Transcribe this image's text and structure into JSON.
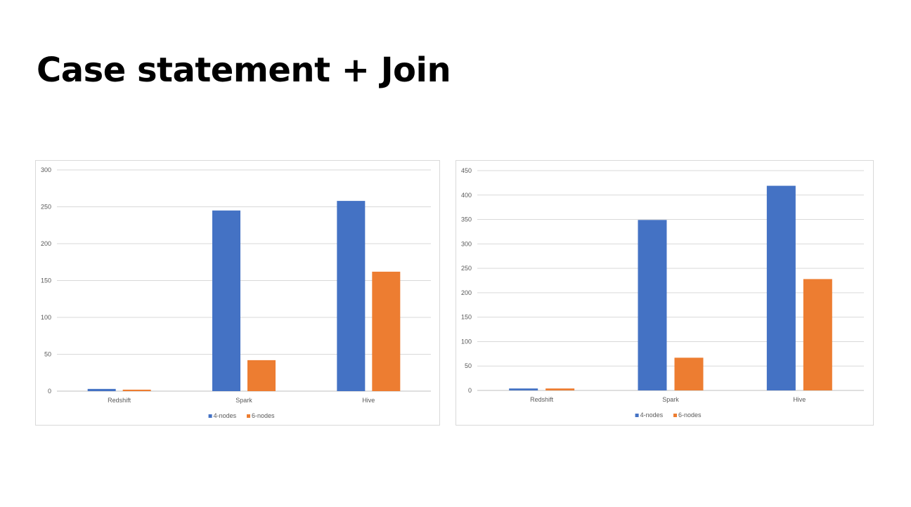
{
  "slide": {
    "title": "Case statement + Join"
  },
  "chart_data": [
    {
      "type": "bar",
      "categories": [
        "Redshift",
        "Spark",
        "Hive"
      ],
      "series": [
        {
          "name": "4-nodes",
          "values": [
            3,
            245,
            258
          ],
          "color": "#4472c4"
        },
        {
          "name": "6-nodes",
          "values": [
            2,
            42,
            162
          ],
          "color": "#ed7d31"
        }
      ],
      "ylim": [
        0,
        300
      ],
      "yticks": [
        0,
        50,
        100,
        150,
        200,
        250,
        300
      ],
      "grid": true,
      "legend": "bottom"
    },
    {
      "type": "bar",
      "categories": [
        "Redshift",
        "Spark",
        "Hive"
      ],
      "series": [
        {
          "name": "4-nodes",
          "values": [
            4,
            349,
            419
          ],
          "color": "#4472c4"
        },
        {
          "name": "6-nodes",
          "values": [
            4,
            67,
            228
          ],
          "color": "#ed7d31"
        }
      ],
      "ylim": [
        0,
        450
      ],
      "yticks": [
        0,
        50,
        100,
        150,
        200,
        250,
        300,
        350,
        400,
        450
      ],
      "grid": true,
      "legend": "bottom"
    }
  ]
}
